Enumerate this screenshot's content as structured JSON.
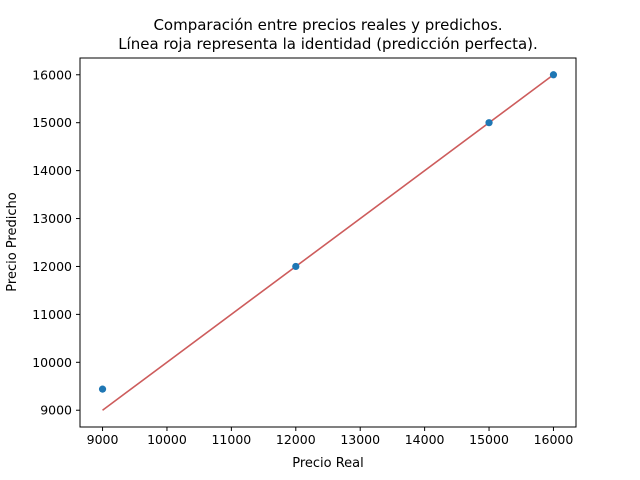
{
  "chart_data": {
    "type": "scatter",
    "title_line1": "Comparación entre precios reales y predichos.",
    "title_line2": "Línea roja representa la identidad (predicción perfecta).",
    "xlabel": "Precio Real",
    "ylabel": "Precio Predicho",
    "xlim": [
      8650,
      16350
    ],
    "ylim": [
      8650,
      16350
    ],
    "xticks": [
      9000,
      10000,
      11000,
      12000,
      13000,
      14000,
      15000,
      16000
    ],
    "yticks": [
      9000,
      10000,
      11000,
      12000,
      13000,
      14000,
      15000,
      16000
    ],
    "grid": false,
    "points": [
      {
        "x": 9000,
        "y": 9440
      },
      {
        "x": 12000,
        "y": 12000
      },
      {
        "x": 15000,
        "y": 15000
      },
      {
        "x": 16000,
        "y": 16000
      }
    ],
    "identity_line": {
      "from": [
        9000,
        9000
      ],
      "to": [
        16000,
        16000
      ]
    },
    "colors": {
      "points": "#1f77b4",
      "identity_line": "#cd5c5c",
      "axes": "#000000"
    }
  }
}
